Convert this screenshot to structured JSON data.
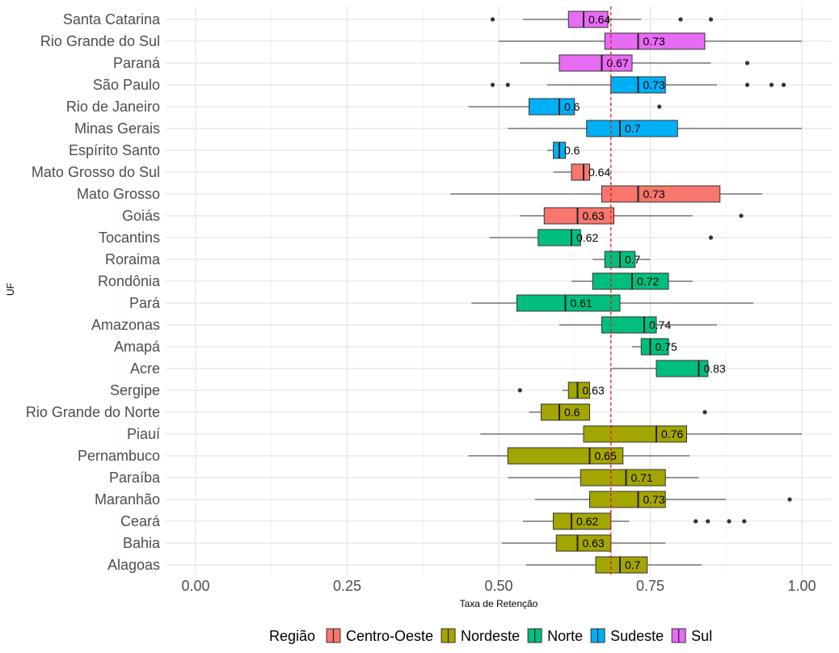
{
  "chart_data": {
    "type": "boxplot",
    "orientation": "horizontal",
    "xlabel": "Taxa de Retenção",
    "ylabel": "UF",
    "xlim": [
      -0.05,
      1.03
    ],
    "x_ticks": [
      0.0,
      0.25,
      0.5,
      0.75,
      1.0
    ],
    "x_tick_labels": [
      "0.00",
      "0.25",
      "0.50",
      "0.75",
      "1.00"
    ],
    "reference_line": {
      "x": 0.685,
      "style": "dashed",
      "color": "#e41a1c"
    },
    "grid": true,
    "legend": {
      "title": "Região",
      "position": "bottom",
      "items": [
        {
          "name": "Centro-Oeste",
          "color": "#F8766D"
        },
        {
          "name": "Nordeste",
          "color": "#A3A500"
        },
        {
          "name": "Norte",
          "color": "#00BF7D"
        },
        {
          "name": "Sudeste",
          "color": "#00B0F6"
        },
        {
          "name": "Sul",
          "color": "#E76BF3"
        }
      ]
    },
    "categories": [
      {
        "uf": "Santa Catarina",
        "region": "Sul",
        "whisker_low": 0.54,
        "q1": 0.615,
        "median": 0.64,
        "q3": 0.68,
        "whisker_high": 0.735,
        "outliers": [
          0.49,
          0.8,
          0.85
        ],
        "label": "0.64"
      },
      {
        "uf": "Rio Grande do Sul",
        "region": "Sul",
        "whisker_low": 0.5,
        "q1": 0.675,
        "median": 0.73,
        "q3": 0.84,
        "whisker_high": 1.0,
        "outliers": [],
        "label": "0.73"
      },
      {
        "uf": "Paraná",
        "region": "Sul",
        "whisker_low": 0.535,
        "q1": 0.6,
        "median": 0.67,
        "q3": 0.72,
        "whisker_high": 0.85,
        "outliers": [
          0.91
        ],
        "label": "0.67"
      },
      {
        "uf": "São Paulo",
        "region": "Sudeste",
        "whisker_low": 0.58,
        "q1": 0.685,
        "median": 0.73,
        "q3": 0.775,
        "whisker_high": 0.86,
        "outliers": [
          0.49,
          0.515,
          0.91,
          0.95,
          0.97
        ],
        "label": "0.73"
      },
      {
        "uf": "Rio de Janeiro",
        "region": "Sudeste",
        "whisker_low": 0.45,
        "q1": 0.55,
        "median": 0.6,
        "q3": 0.625,
        "whisker_high": 0.625,
        "outliers": [
          0.765
        ],
        "label": "0.6"
      },
      {
        "uf": "Minas Gerais",
        "region": "Sudeste",
        "whisker_low": 0.515,
        "q1": 0.645,
        "median": 0.7,
        "q3": 0.795,
        "whisker_high": 1.0,
        "outliers": [],
        "label": "0.7"
      },
      {
        "uf": "Espírito Santo",
        "region": "Sudeste",
        "whisker_low": 0.58,
        "q1": 0.59,
        "median": 0.6,
        "q3": 0.61,
        "whisker_high": 0.61,
        "outliers": [],
        "label": "0.6"
      },
      {
        "uf": "Mato Grosso do Sul",
        "region": "Centro-Oeste",
        "whisker_low": 0.59,
        "q1": 0.62,
        "median": 0.64,
        "q3": 0.65,
        "whisker_high": 0.65,
        "outliers": [],
        "label": "0.64"
      },
      {
        "uf": "Mato Grosso",
        "region": "Centro-Oeste",
        "whisker_low": 0.42,
        "q1": 0.67,
        "median": 0.73,
        "q3": 0.865,
        "whisker_high": 0.935,
        "outliers": [],
        "label": "0.73"
      },
      {
        "uf": "Goiás",
        "region": "Centro-Oeste",
        "whisker_low": 0.535,
        "q1": 0.575,
        "median": 0.63,
        "q3": 0.69,
        "whisker_high": 0.82,
        "outliers": [
          0.9
        ],
        "label": "0.63"
      },
      {
        "uf": "Tocantins",
        "region": "Norte",
        "whisker_low": 0.485,
        "q1": 0.565,
        "median": 0.62,
        "q3": 0.635,
        "whisker_high": 0.635,
        "outliers": [
          0.85
        ],
        "label": "0.62"
      },
      {
        "uf": "Roraima",
        "region": "Norte",
        "whisker_low": 0.655,
        "q1": 0.675,
        "median": 0.7,
        "q3": 0.725,
        "whisker_high": 0.75,
        "outliers": [],
        "label": "0.7"
      },
      {
        "uf": "Rondônia",
        "region": "Norte",
        "whisker_low": 0.62,
        "q1": 0.655,
        "median": 0.72,
        "q3": 0.78,
        "whisker_high": 0.82,
        "outliers": [],
        "label": "0.72"
      },
      {
        "uf": "Pará",
        "region": "Norte",
        "whisker_low": 0.455,
        "q1": 0.53,
        "median": 0.61,
        "q3": 0.7,
        "whisker_high": 0.92,
        "outliers": [],
        "label": "0.61"
      },
      {
        "uf": "Amazonas",
        "region": "Norte",
        "whisker_low": 0.6,
        "q1": 0.67,
        "median": 0.74,
        "q3": 0.76,
        "whisker_high": 0.86,
        "outliers": [],
        "label": "0.74"
      },
      {
        "uf": "Amapá",
        "region": "Norte",
        "whisker_low": 0.72,
        "q1": 0.735,
        "median": 0.75,
        "q3": 0.78,
        "whisker_high": 0.78,
        "outliers": [],
        "label": "0.75"
      },
      {
        "uf": "Acre",
        "region": "Norte",
        "whisker_low": 0.685,
        "q1": 0.76,
        "median": 0.83,
        "q3": 0.845,
        "whisker_high": 0.845,
        "outliers": [],
        "label": "0.83"
      },
      {
        "uf": "Sergipe",
        "region": "Nordeste",
        "whisker_low": 0.605,
        "q1": 0.615,
        "median": 0.63,
        "q3": 0.65,
        "whisker_high": 0.65,
        "outliers": [
          0.535
        ],
        "label": "0.63"
      },
      {
        "uf": "Rio Grande do Norte",
        "region": "Nordeste",
        "whisker_low": 0.55,
        "q1": 0.57,
        "median": 0.6,
        "q3": 0.65,
        "whisker_high": 0.65,
        "outliers": [
          0.84
        ],
        "label": "0.6"
      },
      {
        "uf": "Piauí",
        "region": "Nordeste",
        "whisker_low": 0.47,
        "q1": 0.64,
        "median": 0.76,
        "q3": 0.81,
        "whisker_high": 1.0,
        "outliers": [],
        "label": "0.76"
      },
      {
        "uf": "Pernambuco",
        "region": "Nordeste",
        "whisker_low": 0.45,
        "q1": 0.515,
        "median": 0.65,
        "q3": 0.705,
        "whisker_high": 0.815,
        "outliers": [],
        "label": "0.65"
      },
      {
        "uf": "Paraíba",
        "region": "Nordeste",
        "whisker_low": 0.515,
        "q1": 0.635,
        "median": 0.71,
        "q3": 0.775,
        "whisker_high": 0.83,
        "outliers": [],
        "label": "0.71"
      },
      {
        "uf": "Maranhão",
        "region": "Nordeste",
        "whisker_low": 0.56,
        "q1": 0.65,
        "median": 0.73,
        "q3": 0.775,
        "whisker_high": 0.875,
        "outliers": [
          0.98
        ],
        "label": "0.73"
      },
      {
        "uf": "Ceará",
        "region": "Nordeste",
        "whisker_low": 0.54,
        "q1": 0.59,
        "median": 0.62,
        "q3": 0.685,
        "whisker_high": 0.715,
        "outliers": [
          0.825,
          0.845,
          0.88,
          0.905
        ],
        "label": "0.62"
      },
      {
        "uf": "Bahia",
        "region": "Nordeste",
        "whisker_low": 0.505,
        "q1": 0.595,
        "median": 0.63,
        "q3": 0.685,
        "whisker_high": 0.775,
        "outliers": [],
        "label": "0.63"
      },
      {
        "uf": "Alagoas",
        "region": "Nordeste",
        "whisker_low": 0.545,
        "q1": 0.66,
        "median": 0.7,
        "q3": 0.745,
        "whisker_high": 0.835,
        "outliers": [],
        "label": "0.7"
      }
    ]
  }
}
